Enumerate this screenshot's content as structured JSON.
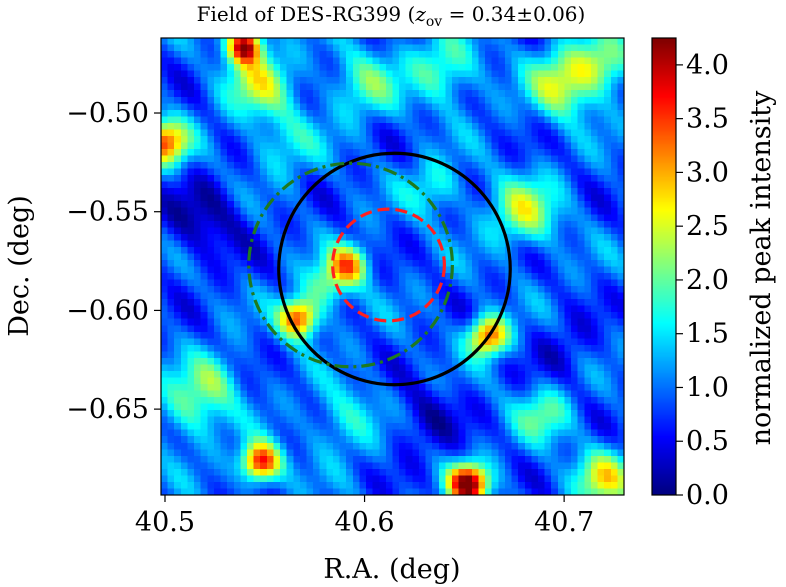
{
  "chart_data": {
    "type": "heatmap",
    "title": "Field of DES-RG399 (",
    "title_math_var": "z",
    "title_math_sub": "ov",
    "title_math_value": " = 0.34±0.06",
    "title_close": ")",
    "xlabel": "R.A. (deg)",
    "ylabel": "Dec. (deg)",
    "colorbar_label": "normalized peak intensity",
    "xlim": [
      40.498,
      40.73
    ],
    "ylim": [
      -0.6935,
      -0.462
    ],
    "x_ticks": [
      40.5,
      40.6,
      40.7
    ],
    "x_tick_labels": [
      "40.5",
      "40.6",
      "40.7"
    ],
    "y_ticks": [
      -0.5,
      -0.55,
      -0.6,
      -0.65
    ],
    "y_tick_labels": [
      "−0.50",
      "−0.55",
      "−0.60",
      "−0.65"
    ],
    "clim": [
      0.0,
      4.25
    ],
    "colorbar_ticks": [
      0.0,
      0.5,
      1.0,
      1.5,
      2.0,
      2.5,
      3.0,
      3.5,
      4.0
    ],
    "colorbar_tick_labels": [
      "0.0",
      "0.5",
      "1.0",
      "1.5",
      "2.0",
      "2.5",
      "3.0",
      "3.5",
      "4.0"
    ],
    "colormap": "jet",
    "grid": false,
    "background_level": 0.9,
    "peaks": [
      {
        "ra": 40.54,
        "dec": -0.466,
        "amp": 3.2,
        "sigma": 0.006
      },
      {
        "ra": 40.5,
        "dec": -0.515,
        "amp": 2.4,
        "sigma": 0.008
      },
      {
        "ra": 40.547,
        "dec": -0.485,
        "amp": 1.4,
        "sigma": 0.012
      },
      {
        "ra": 40.592,
        "dec": -0.577,
        "amp": 2.2,
        "sigma": 0.007
      },
      {
        "ra": 40.567,
        "dec": -0.604,
        "amp": 2.7,
        "sigma": 0.007
      },
      {
        "ra": 40.581,
        "dec": -0.588,
        "amp": 1.1,
        "sigma": 0.008
      },
      {
        "ra": 40.662,
        "dec": -0.613,
        "amp": 2.5,
        "sigma": 0.007
      },
      {
        "ra": 40.548,
        "dec": -0.677,
        "amp": 3.0,
        "sigma": 0.007
      },
      {
        "ra": 40.652,
        "dec": -0.688,
        "amp": 3.4,
        "sigma": 0.007
      },
      {
        "ra": 40.512,
        "dec": -0.65,
        "amp": 1.0,
        "sigma": 0.012
      },
      {
        "ra": 40.69,
        "dec": -0.653,
        "amp": 1.0,
        "sigma": 0.01
      },
      {
        "ra": 40.72,
        "dec": -0.685,
        "amp": 1.6,
        "sigma": 0.01
      },
      {
        "ra": 40.7,
        "dec": -0.485,
        "amp": 1.6,
        "sigma": 0.012
      },
      {
        "ra": 40.72,
        "dec": -0.475,
        "amp": 1.3,
        "sigma": 0.01
      },
      {
        "ra": 40.68,
        "dec": -0.55,
        "amp": 1.4,
        "sigma": 0.012
      },
      {
        "ra": 40.64,
        "dec": -0.478,
        "amp": 1.1,
        "sigma": 0.012
      },
      {
        "ra": 40.6,
        "dec": -0.485,
        "amp": 1.0,
        "sigma": 0.012
      },
      {
        "ra": 40.635,
        "dec": -0.538,
        "amp": 0.8,
        "sigma": 0.01
      },
      {
        "ra": 40.56,
        "dec": -0.515,
        "amp": 0.7,
        "sigma": 0.012
      },
      {
        "ra": 40.525,
        "dec": -0.635,
        "amp": 0.9,
        "sigma": 0.01
      },
      {
        "ra": 40.59,
        "dec": -0.655,
        "amp": 0.8,
        "sigma": 0.012
      },
      {
        "ra": 40.52,
        "dec": -0.555,
        "amp": -0.7,
        "sigma": 0.015
      },
      {
        "ra": 40.63,
        "dec": -0.655,
        "amp": -0.6,
        "sigma": 0.012
      },
      {
        "ra": 40.7,
        "dec": -0.62,
        "amp": -0.4,
        "sigma": 0.012
      }
    ],
    "circles": [
      {
        "name": "black-solid",
        "ra": 40.615,
        "dec": -0.579,
        "radius": 0.058,
        "color": "#000000",
        "style": "solid"
      },
      {
        "name": "green-dash-dot",
        "ra": 40.593,
        "dec": -0.577,
        "radius": 0.051,
        "color": "#1f7a1f",
        "style": "dashdot"
      },
      {
        "name": "red-dashed",
        "ra": 40.612,
        "dec": -0.577,
        "radius": 0.028,
        "color": "#ff2020",
        "style": "dashed"
      }
    ]
  }
}
